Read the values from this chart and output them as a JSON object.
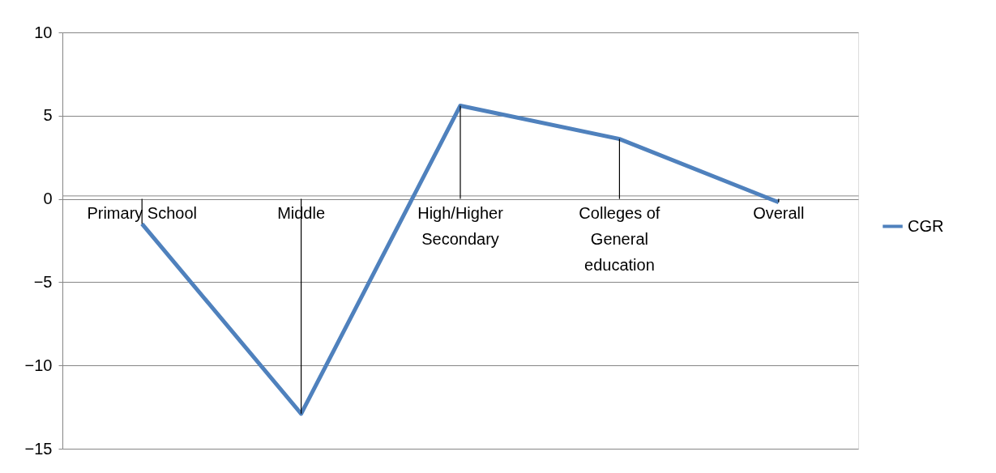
{
  "chart_data": {
    "type": "line",
    "categories": [
      "Primary School",
      "Middle",
      "High/Higher Secondary",
      "Colleges of General education",
      "Overall"
    ],
    "series": [
      {
        "name": "CGR",
        "color": "#4f81bd",
        "values": [
          -1.5,
          -12.9,
          5.6,
          3.6,
          -0.2
        ],
        "errors": [
          [
            -1.5,
            0
          ],
          [
            -12.9,
            0
          ],
          [
            0,
            5.6
          ],
          [
            0,
            3.6
          ],
          [
            -0.2,
            0
          ]
        ]
      }
    ],
    "ylim": [
      -15,
      10
    ],
    "yticks": [
      -15,
      -10,
      -5,
      0,
      5,
      10
    ],
    "grid": "y",
    "legend": "right",
    "marker": "none",
    "line_style": "solid"
  }
}
